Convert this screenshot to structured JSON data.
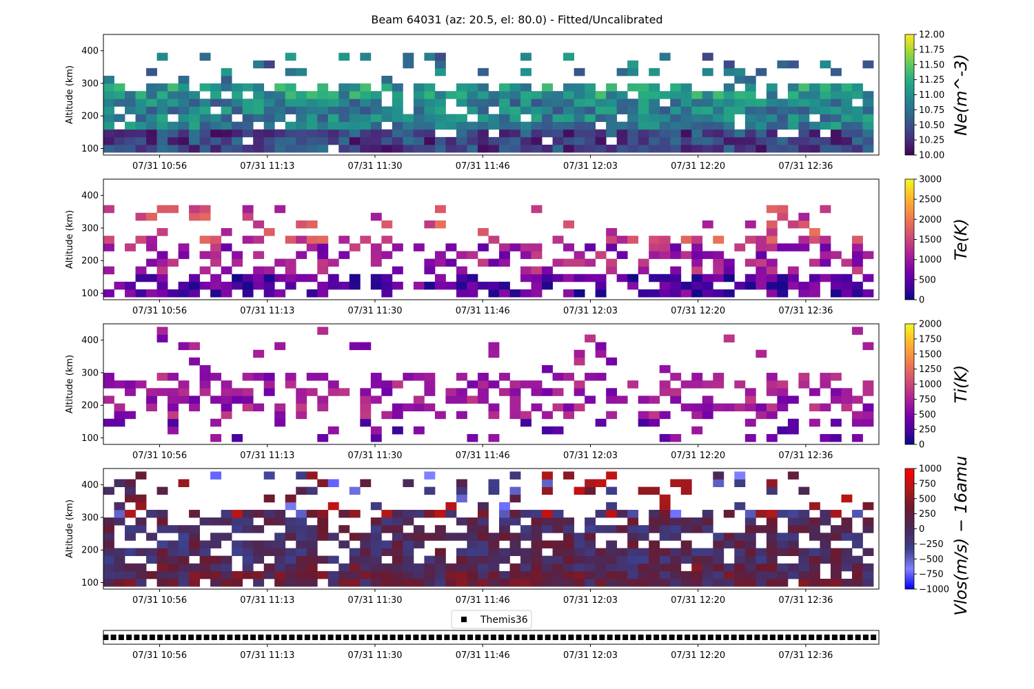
{
  "figure": {
    "title": "Beam 64031 (az: 20.5, el: 80.0) - Fitted/Uncalibrated"
  },
  "chart_data": [
    {
      "type": "heatmap",
      "ylabel": "Altitude (km)",
      "colorbar_label": "Ne(m^-3)",
      "colormap": "viridis",
      "clim": [
        10.0,
        12.0
      ],
      "colorbar_ticks": [
        "10.00",
        "10.25",
        "10.50",
        "10.75",
        "11.00",
        "11.25",
        "11.50",
        "11.75",
        "12.00"
      ],
      "yticks": [
        "100",
        "200",
        "300",
        "400"
      ],
      "ylim": [
        80,
        450
      ],
      "xtick_labels": [
        "07/31 10:56",
        "07/31 11:13",
        "07/31 11:30",
        "07/31 11:46",
        "07/31 12:03",
        "07/31 12:20",
        "07/31 12:36"
      ],
      "altitude_range_km": [
        100,
        380
      ],
      "typical_values": {
        "below_150km": 10.4,
        "150_to_250km": 10.9,
        "250_to_300km": 11.1,
        "above_300km": 10.7
      }
    },
    {
      "type": "heatmap",
      "ylabel": "Altitude (km)",
      "colorbar_label": "Te(K)",
      "colormap": "plasma",
      "clim": [
        0,
        3000
      ],
      "colorbar_ticks": [
        "0",
        "500",
        "1000",
        "1500",
        "2000",
        "2500",
        "3000"
      ],
      "yticks": [
        "100",
        "200",
        "300",
        "400"
      ],
      "ylim": [
        80,
        450
      ],
      "xtick_labels": [
        "07/31 10:56",
        "07/31 11:13",
        "07/31 11:30",
        "07/31 11:46",
        "07/31 12:03",
        "07/31 12:20",
        "07/31 12:36"
      ],
      "altitude_range_km": [
        100,
        360
      ],
      "typical_values": {
        "below_150km": 500,
        "150_to_250km": 1100,
        "above_250km": 1600
      }
    },
    {
      "type": "heatmap",
      "ylabel": "Altitude (km)",
      "colorbar_label": "Ti(K)",
      "colormap": "plasma",
      "clim": [
        0,
        2000
      ],
      "colorbar_ticks": [
        "0",
        "250",
        "500",
        "750",
        "1000",
        "1250",
        "1500",
        "1750",
        "2000"
      ],
      "yticks": [
        "100",
        "200",
        "300",
        "400"
      ],
      "ylim": [
        80,
        450
      ],
      "xtick_labels": [
        "07/31 10:56",
        "07/31 11:13",
        "07/31 11:30",
        "07/31 11:46",
        "07/31 12:03",
        "07/31 12:20",
        "07/31 12:36"
      ],
      "altitude_range_km": [
        100,
        420
      ],
      "typical_values": {
        "below_150km": 450,
        "150_to_250km": 700,
        "above_250km": 700
      }
    },
    {
      "type": "heatmap",
      "ylabel": "Altitude (km)",
      "colorbar_label": "Vlos(m/s) − 16amu",
      "colormap": "bwr",
      "clim": [
        -1000,
        1000
      ],
      "colorbar_ticks": [
        "−1000",
        "−750",
        "−500",
        "−250",
        "0",
        "250",
        "500",
        "750",
        "1000"
      ],
      "yticks": [
        "100",
        "200",
        "300",
        "400"
      ],
      "ylim": [
        80,
        450
      ],
      "xtick_labels": [
        "07/31 10:56",
        "07/31 11:13",
        "07/31 11:30",
        "07/31 11:46",
        "07/31 12:03",
        "07/31 12:20",
        "07/31 12:36"
      ],
      "altitude_range_km": [
        100,
        440
      ],
      "typical_values": {
        "low_altitude": 100,
        "mid_altitude": 0,
        "high_altitude_spread": 900
      }
    },
    {
      "type": "scatter",
      "legend": [
        "Themis36"
      ],
      "legend_position": "top-center",
      "marker": "square",
      "color": "#000000",
      "xtick_labels": [
        "07/31 10:56",
        "07/31 11:13",
        "07/31 11:30",
        "07/31 11:46",
        "07/31 12:03",
        "07/31 12:20",
        "07/31 12:36"
      ],
      "point_count": 100
    }
  ]
}
